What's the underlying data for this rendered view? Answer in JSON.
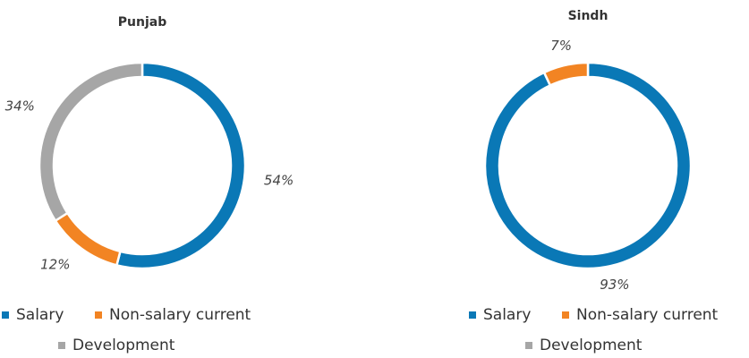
{
  "chart_data": [
    {
      "type": "donut",
      "title": "Punjab",
      "categories": [
        "Salary",
        "Non-salary current",
        "Development"
      ],
      "values": [
        54,
        12,
        34
      ],
      "value_labels": [
        "54%",
        "12%",
        "34%"
      ],
      "colors": [
        "#0a78b6",
        "#f28423",
        "#a6a6a6"
      ]
    },
    {
      "type": "donut",
      "title": "Sindh",
      "categories": [
        "Salary",
        "Non-salary current",
        "Development"
      ],
      "values": [
        93,
        7,
        0
      ],
      "value_labels": [
        "93%",
        "7%",
        null
      ],
      "colors": [
        "#0a78b6",
        "#f28423",
        "#a6a6a6"
      ]
    }
  ]
}
